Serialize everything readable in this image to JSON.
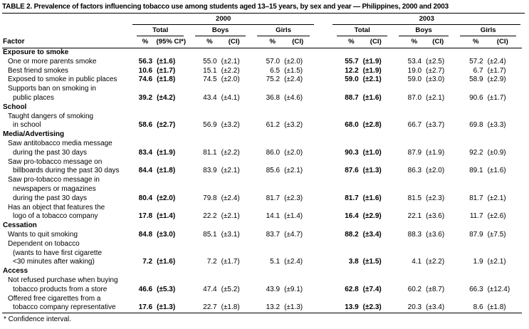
{
  "title": "TABLE 2. Prevalence of factors influencing tobacco use among students aged 13–15 years, by sex and year — Philippines, 2000 and 2003",
  "footnote": "* Confidence interval.",
  "table": {
    "factor_header": "Factor",
    "year_groups": [
      {
        "year": "2000",
        "subgroups": [
          {
            "label": "Total",
            "pct": "%",
            "ci": "(95% CI*)"
          },
          {
            "label": "Boys",
            "pct": "%",
            "ci": "(CI)"
          },
          {
            "label": "Girls",
            "pct": "%",
            "ci": "(CI)"
          }
        ]
      },
      {
        "year": "2003",
        "subgroups": [
          {
            "label": "Total",
            "pct": "%",
            "ci": "(CI)"
          },
          {
            "label": "Boys",
            "pct": "%",
            "ci": "(CI)"
          },
          {
            "label": "Girls",
            "pct": "%",
            "ci": "(CI)"
          }
        ]
      }
    ],
    "rows": [
      {
        "type": "section",
        "label": "Exposure to smoke"
      },
      {
        "type": "data",
        "lines": [
          "One or more parents smoke"
        ],
        "values": [
          "56.3",
          "(±1.6)",
          "55.0",
          "(±2.1)",
          "57.0",
          "(±2.0)",
          "55.7",
          "(±1.9)",
          "53.4",
          "(±2.5)",
          "57.2",
          "(±2.4)"
        ]
      },
      {
        "type": "data",
        "lines": [
          "Best friend smokes"
        ],
        "values": [
          "10.6",
          "(±1.7)",
          "15.1",
          "(±2.2)",
          "6.5",
          "(±1.5)",
          "12.2",
          "(±1.9)",
          "19.0",
          "(±2.7)",
          "6.7",
          "(±1.7)"
        ]
      },
      {
        "type": "data",
        "lines": [
          "Exposed to smoke in public places"
        ],
        "values": [
          "74.6",
          "(±1.8)",
          "74.5",
          "(±2.0)",
          "75.2",
          "(±2.4)",
          "59.0",
          "(±2.1)",
          "59.0",
          "(±3.0)",
          "58.9",
          "(±2.9)"
        ]
      },
      {
        "type": "data",
        "lines": [
          "Supports ban on smoking in",
          "public places"
        ],
        "values": [
          "39.2",
          "(±4.2)",
          "43.4",
          "(±4.1)",
          "36.8",
          "(±4.6)",
          "88.7",
          "(±1.6)",
          "87.0",
          "(±2.1)",
          "90.6",
          "(±1.7)"
        ]
      },
      {
        "type": "section",
        "label": "School"
      },
      {
        "type": "data",
        "lines": [
          "Taught dangers of smoking",
          "in school"
        ],
        "values": [
          "58.6",
          "(±2.7)",
          "56.9",
          "(±3.2)",
          "61.2",
          "(±3.2)",
          "68.0",
          "(±2.8)",
          "66.7",
          "(±3.7)",
          "69.8",
          "(±3.3)"
        ]
      },
      {
        "type": "section",
        "label": "Media/Advertising"
      },
      {
        "type": "data",
        "lines": [
          "Saw antitobacco media message",
          "during the past 30 days"
        ],
        "values": [
          "83.4",
          "(±1.9)",
          "81.1",
          "(±2.2)",
          "86.0",
          "(±2.0)",
          "90.3",
          "(±1.0)",
          "87.9",
          "(±1.9)",
          "92.2",
          "(±0.9)"
        ]
      },
      {
        "type": "data",
        "lines": [
          "Saw pro-tobacco message on",
          "billboards during the past 30 days"
        ],
        "values": [
          "84.4",
          "(±1.8)",
          "83.9",
          "(±2.1)",
          "85.6",
          "(±2.1)",
          "87.6",
          "(±1.3)",
          "86.3",
          "(±2.0)",
          "89.1",
          "(±1.6)"
        ]
      },
      {
        "type": "data",
        "lines": [
          "Saw pro-tobacco message in",
          "newspapers or magazines",
          "during the past 30 days"
        ],
        "values": [
          "80.4",
          "(±2.0)",
          "79.8",
          "(±2.4)",
          "81.7",
          "(±2.3)",
          "81.7",
          "(±1.6)",
          "81.5",
          "(±2.3)",
          "81.7",
          "(±2.1)"
        ]
      },
      {
        "type": "data",
        "lines": [
          "Has an object that features the",
          "logo of a tobacco company"
        ],
        "values": [
          "17.8",
          "(±1.4)",
          "22.2",
          "(±2.1)",
          "14.1",
          "(±1.4)",
          "16.4",
          "(±2.9)",
          "22.1",
          "(±3.6)",
          "11.7",
          "(±2.6)"
        ]
      },
      {
        "type": "section",
        "label": "Cessation"
      },
      {
        "type": "data",
        "lines": [
          "Wants to quit smoking"
        ],
        "values": [
          "84.8",
          "(±3.0)",
          "85.1",
          "(±3.1)",
          "83.7",
          "(±4.7)",
          "88.2",
          "(±3.4)",
          "88.3",
          "(±3.6)",
          "87.9",
          "(±7.5)"
        ]
      },
      {
        "type": "data",
        "lines": [
          "Dependent on tobacco",
          "(wants to have first cigarette",
          "<30 minutes after waking)"
        ],
        "values": [
          "7.2",
          "(±1.6)",
          "7.2",
          "(±1.7)",
          "5.1",
          "(±2.4)",
          "3.8",
          "(±1.5)",
          "4.1",
          "(±2.2)",
          "1.9",
          "(±2.1)"
        ]
      },
      {
        "type": "section",
        "label": "Access"
      },
      {
        "type": "data",
        "lines": [
          "Not refused purchase when buying",
          "tobacco products from a store"
        ],
        "values": [
          "46.6",
          "(±5.3)",
          "47.4",
          "(±5.2)",
          "43.9",
          "(±9.1)",
          "62.8",
          "(±7.4)",
          "60.2",
          "(±8.7)",
          "66.3",
          "(±12.4)"
        ]
      },
      {
        "type": "data",
        "lines": [
          "Offered free cigarettes from a",
          "tobacco company representative"
        ],
        "values": [
          "17.6",
          "(±1.3)",
          "22.7",
          "(±1.8)",
          "13.2",
          "(±1.3)",
          "13.9",
          "(±2.3)",
          "20.3",
          "(±3.4)",
          "8.6",
          "(±1.8)"
        ]
      }
    ]
  }
}
